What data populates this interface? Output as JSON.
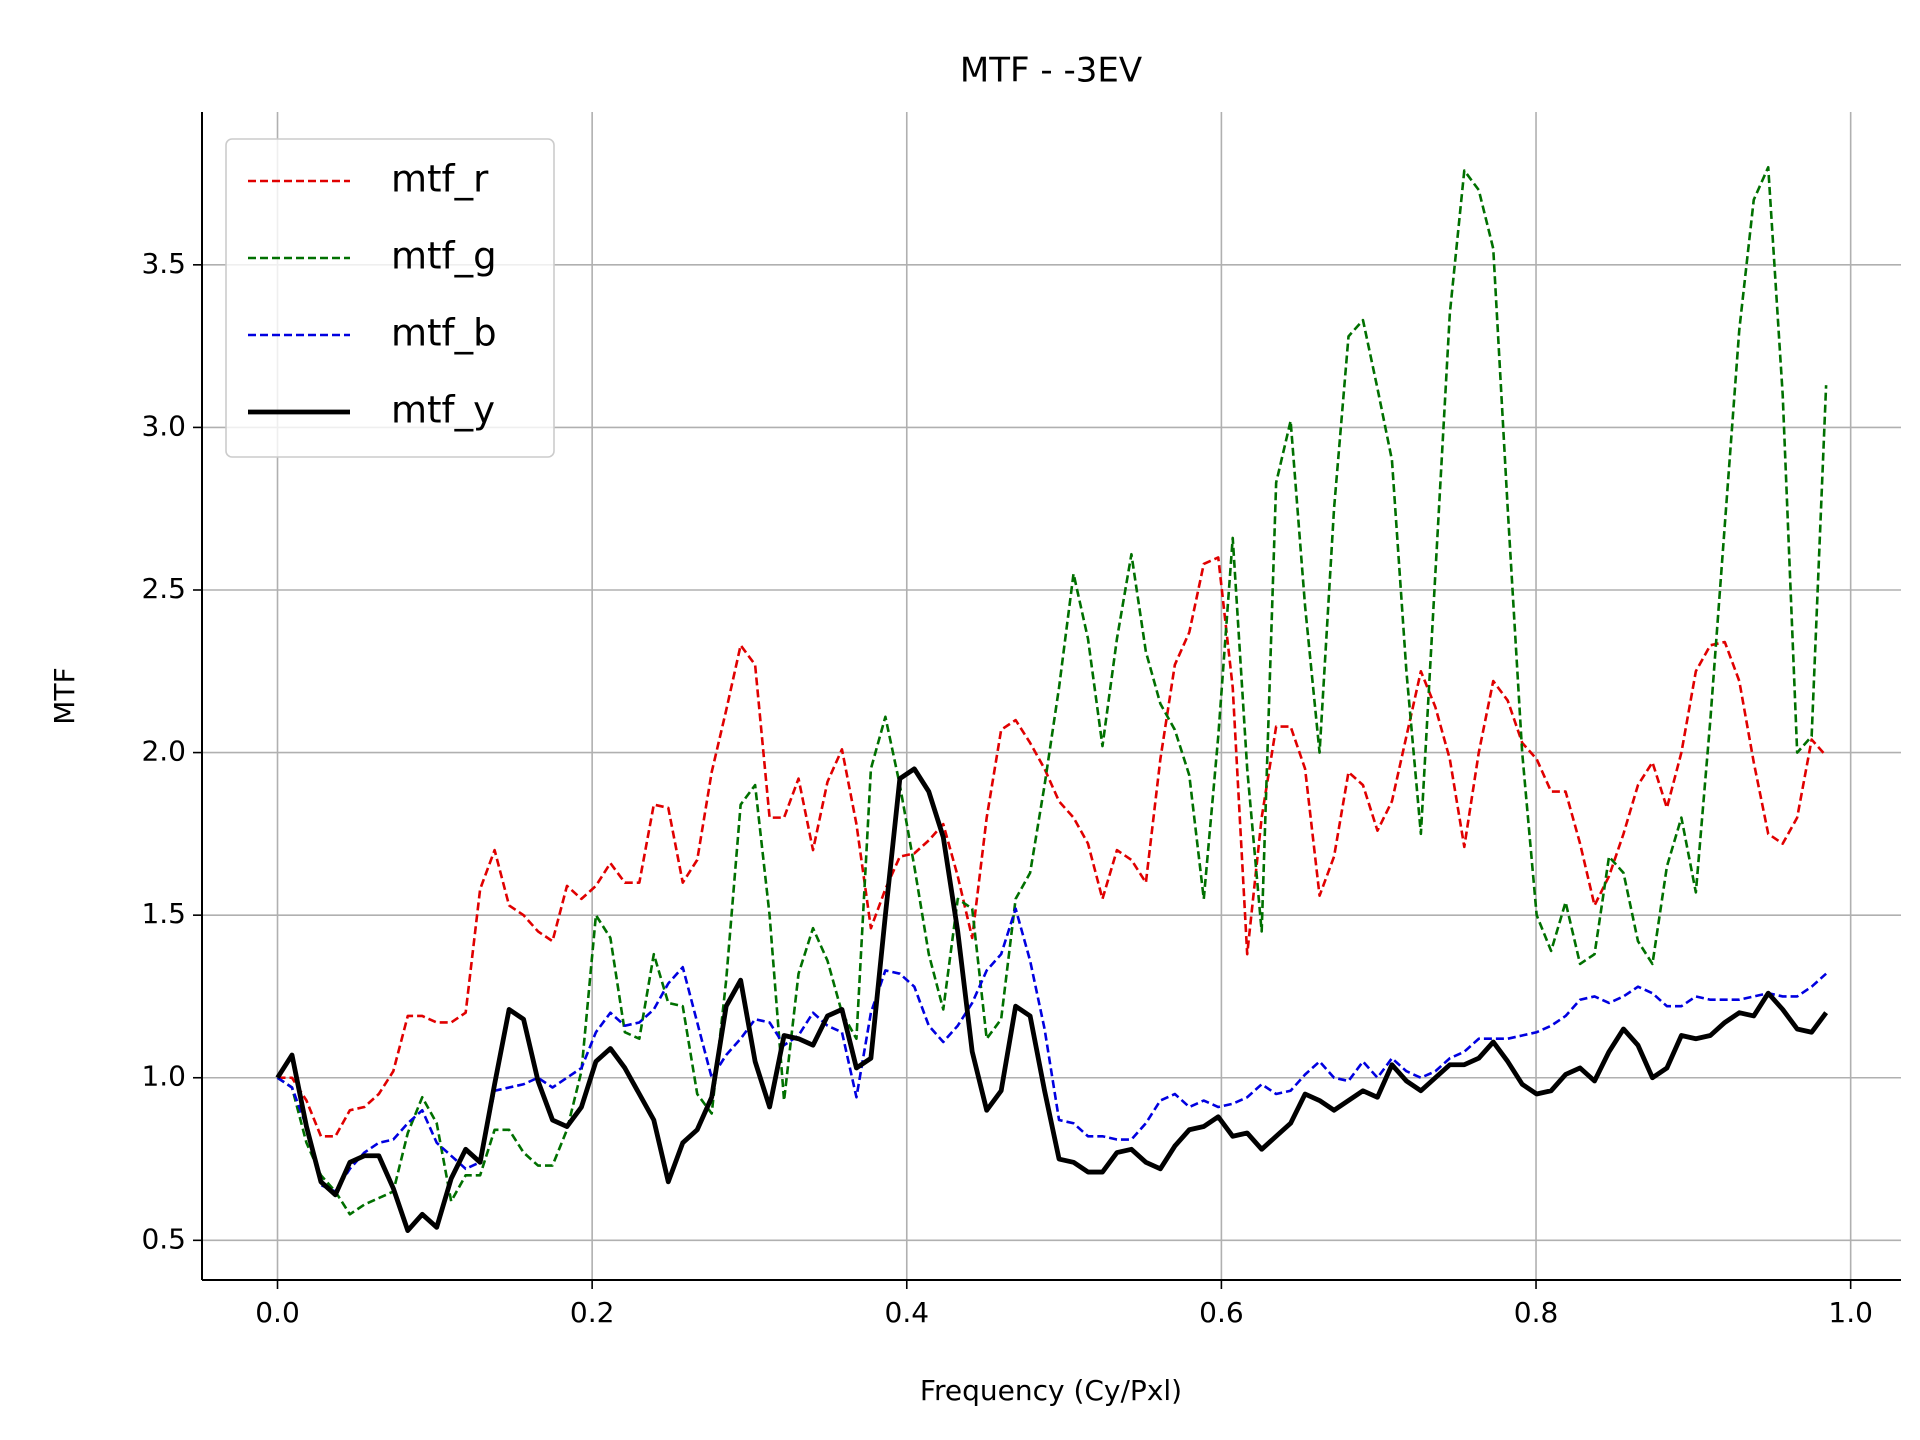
{
  "chart_data": {
    "type": "line",
    "title": "MTF - -3EV",
    "xlabel": "Frequency (Cy/Pxl)",
    "ylabel": "MTF",
    "x": [
      0,
      0.0092,
      0.0184,
      0.0276,
      0.0368,
      0.046,
      0.0552,
      0.0644,
      0.0736,
      0.0828,
      0.092,
      0.1012,
      0.1104,
      0.1196,
      0.1288,
      0.138,
      0.1472,
      0.1564,
      0.1656,
      0.1748,
      0.184,
      0.1932,
      0.2024,
      0.2116,
      0.2208,
      0.23,
      0.2392,
      0.2484,
      0.2576,
      0.2668,
      0.276,
      0.2852,
      0.2944,
      0.3036,
      0.3128,
      0.322,
      0.3312,
      0.3404,
      0.3496,
      0.3588,
      0.368,
      0.3772,
      0.3864,
      0.3956,
      0.4048,
      0.414,
      0.4232,
      0.4324,
      0.4416,
      0.4508,
      0.46,
      0.4692,
      0.4784,
      0.4876,
      0.4968,
      0.506,
      0.5152,
      0.5244,
      0.5336,
      0.5428,
      0.552,
      0.5612,
      0.5704,
      0.5796,
      0.5888,
      0.598,
      0.6072,
      0.6164,
      0.6256,
      0.6348,
      0.644,
      0.6532,
      0.6624,
      0.6716,
      0.6808,
      0.69,
      0.6992,
      0.7084,
      0.7176,
      0.7268,
      0.736,
      0.7452,
      0.7544,
      0.7636,
      0.7728,
      0.782,
      0.7912,
      0.8004,
      0.8096,
      0.8188,
      0.828,
      0.8372,
      0.8464,
      0.8556,
      0.8648,
      0.874,
      0.8832,
      0.8924,
      0.9016,
      0.9108,
      0.92,
      0.9292,
      0.9384,
      0.9476,
      0.9568,
      0.966,
      0.9752,
      0.9844
    ],
    "series": [
      {
        "name": "mtf_r",
        "color": "#e00000",
        "linestyle": "dashed",
        "values": [
          1.0,
          1.0,
          0.93,
          0.82,
          0.82,
          0.9,
          0.91,
          0.95,
          1.02,
          1.19,
          1.19,
          1.17,
          1.17,
          1.2,
          1.58,
          1.7,
          1.53,
          1.5,
          1.45,
          1.42,
          1.59,
          1.55,
          1.59,
          1.66,
          1.6,
          1.6,
          1.84,
          1.83,
          1.6,
          1.67,
          1.94,
          2.13,
          2.33,
          2.27,
          1.8,
          1.8,
          1.92,
          1.7,
          1.91,
          2.01,
          1.78,
          1.46,
          1.58,
          1.68,
          1.69,
          1.73,
          1.78,
          1.62,
          1.43,
          1.8,
          2.07,
          2.1,
          2.03,
          1.95,
          1.85,
          1.8,
          1.72,
          1.55,
          1.7,
          1.67,
          1.6,
          1.98,
          2.27,
          2.37,
          2.58,
          2.6,
          2.2,
          1.38,
          1.8,
          2.08,
          2.08,
          1.95,
          1.56,
          1.68,
          1.94,
          1.9,
          1.76,
          1.85,
          2.05,
          2.25,
          2.14,
          1.98,
          1.71,
          2.0,
          2.22,
          2.16,
          2.03,
          1.98,
          1.88,
          1.88,
          1.72,
          1.53,
          1.62,
          1.75,
          1.9,
          1.97,
          1.83,
          2.0,
          2.25,
          2.33,
          2.34,
          2.22,
          1.97,
          1.75,
          1.72,
          1.8,
          2.04,
          1.99
        ]
      },
      {
        "name": "mtf_g",
        "color": "#007000",
        "linestyle": "dashed",
        "values": [
          1.0,
          0.97,
          0.8,
          0.7,
          0.65,
          0.58,
          0.61,
          0.63,
          0.65,
          0.83,
          0.94,
          0.86,
          0.62,
          0.7,
          0.7,
          0.84,
          0.84,
          0.77,
          0.73,
          0.73,
          0.84,
          1.02,
          1.5,
          1.43,
          1.14,
          1.12,
          1.38,
          1.23,
          1.22,
          0.95,
          0.89,
          1.3,
          1.84,
          1.9,
          1.5,
          0.93,
          1.32,
          1.46,
          1.36,
          1.2,
          1.12,
          1.95,
          2.11,
          1.9,
          1.65,
          1.38,
          1.21,
          1.55,
          1.52,
          1.12,
          1.18,
          1.55,
          1.63,
          1.9,
          2.2,
          2.55,
          2.35,
          2.02,
          2.35,
          2.61,
          2.31,
          2.15,
          2.07,
          1.93,
          1.55,
          2.05,
          2.66,
          1.95,
          1.45,
          2.83,
          3.02,
          2.45,
          2.0,
          2.75,
          3.28,
          3.33,
          3.12,
          2.9,
          2.25,
          1.75,
          2.55,
          3.35,
          3.79,
          3.73,
          3.55,
          2.75,
          2.0,
          1.5,
          1.39,
          1.54,
          1.35,
          1.38,
          1.68,
          1.63,
          1.42,
          1.35,
          1.65,
          1.8,
          1.57,
          2.1,
          2.7,
          3.3,
          3.7,
          3.8,
          3.1,
          2.0,
          2.05,
          3.13
        ]
      },
      {
        "name": "mtf_b",
        "color": "#0000e0",
        "linestyle": "dashed",
        "values": [
          1.0,
          0.97,
          0.85,
          0.67,
          0.65,
          0.72,
          0.77,
          0.8,
          0.81,
          0.86,
          0.9,
          0.8,
          0.76,
          0.72,
          0.74,
          0.96,
          0.97,
          0.98,
          1.0,
          0.97,
          1.0,
          1.03,
          1.14,
          1.2,
          1.16,
          1.17,
          1.21,
          1.29,
          1.34,
          1.17,
          1.0,
          1.07,
          1.12,
          1.18,
          1.17,
          1.1,
          1.13,
          1.2,
          1.16,
          1.14,
          0.94,
          1.2,
          1.33,
          1.32,
          1.28,
          1.16,
          1.11,
          1.16,
          1.23,
          1.33,
          1.38,
          1.52,
          1.36,
          1.15,
          0.87,
          0.86,
          0.82,
          0.82,
          0.81,
          0.81,
          0.86,
          0.93,
          0.95,
          0.91,
          0.93,
          0.91,
          0.92,
          0.94,
          0.98,
          0.95,
          0.96,
          1.01,
          1.05,
          1.0,
          0.99,
          1.05,
          1.0,
          1.06,
          1.02,
          1.0,
          1.02,
          1.06,
          1.08,
          1.12,
          1.12,
          1.12,
          1.13,
          1.14,
          1.16,
          1.19,
          1.24,
          1.25,
          1.23,
          1.25,
          1.28,
          1.26,
          1.22,
          1.22,
          1.25,
          1.24,
          1.24,
          1.24,
          1.25,
          1.26,
          1.25,
          1.25,
          1.28,
          1.32
        ]
      },
      {
        "name": "mtf_y",
        "color": "#000000",
        "linestyle": "solid",
        "values": [
          1.0,
          1.07,
          0.85,
          0.68,
          0.64,
          0.74,
          0.76,
          0.76,
          0.66,
          0.53,
          0.58,
          0.54,
          0.69,
          0.78,
          0.74,
          0.98,
          1.21,
          1.18,
          0.99,
          0.87,
          0.85,
          0.91,
          1.05,
          1.09,
          1.03,
          0.95,
          0.87,
          0.68,
          0.8,
          0.84,
          0.94,
          1.22,
          1.3,
          1.05,
          0.91,
          1.13,
          1.12,
          1.1,
          1.19,
          1.21,
          1.03,
          1.06,
          1.5,
          1.92,
          1.95,
          1.88,
          1.74,
          1.45,
          1.08,
          0.9,
          0.96,
          1.22,
          1.19,
          0.96,
          0.75,
          0.74,
          0.71,
          0.71,
          0.77,
          0.78,
          0.74,
          0.72,
          0.79,
          0.84,
          0.85,
          0.88,
          0.82,
          0.83,
          0.78,
          0.82,
          0.86,
          0.95,
          0.93,
          0.9,
          0.93,
          0.96,
          0.94,
          1.04,
          0.99,
          0.96,
          1.0,
          1.04,
          1.04,
          1.06,
          1.11,
          1.05,
          0.98,
          0.95,
          0.96,
          1.01,
          1.03,
          0.99,
          1.08,
          1.15,
          1.1,
          1.0,
          1.03,
          1.13,
          1.12,
          1.13,
          1.17,
          1.2,
          1.19,
          1.26,
          1.21,
          1.15,
          1.14,
          1.2
        ]
      }
    ],
    "xlim": [
      -0.048,
      1.032
    ],
    "ylim": [
      0.378,
      3.97
    ],
    "xticks": [
      {
        "value": 0,
        "label": "0.0"
      },
      0.2,
      0.4,
      0.6,
      0.8,
      {
        "value": 1,
        "label": "1.0"
      }
    ],
    "yticks": [
      0.5,
      {
        "value": 1,
        "label": "1.0"
      },
      1.5,
      {
        "value": 2,
        "label": "2.0"
      },
      2.5,
      {
        "value": 3,
        "label": "3.0"
      },
      3.5
    ],
    "grid": true,
    "legend": "upper left"
  }
}
